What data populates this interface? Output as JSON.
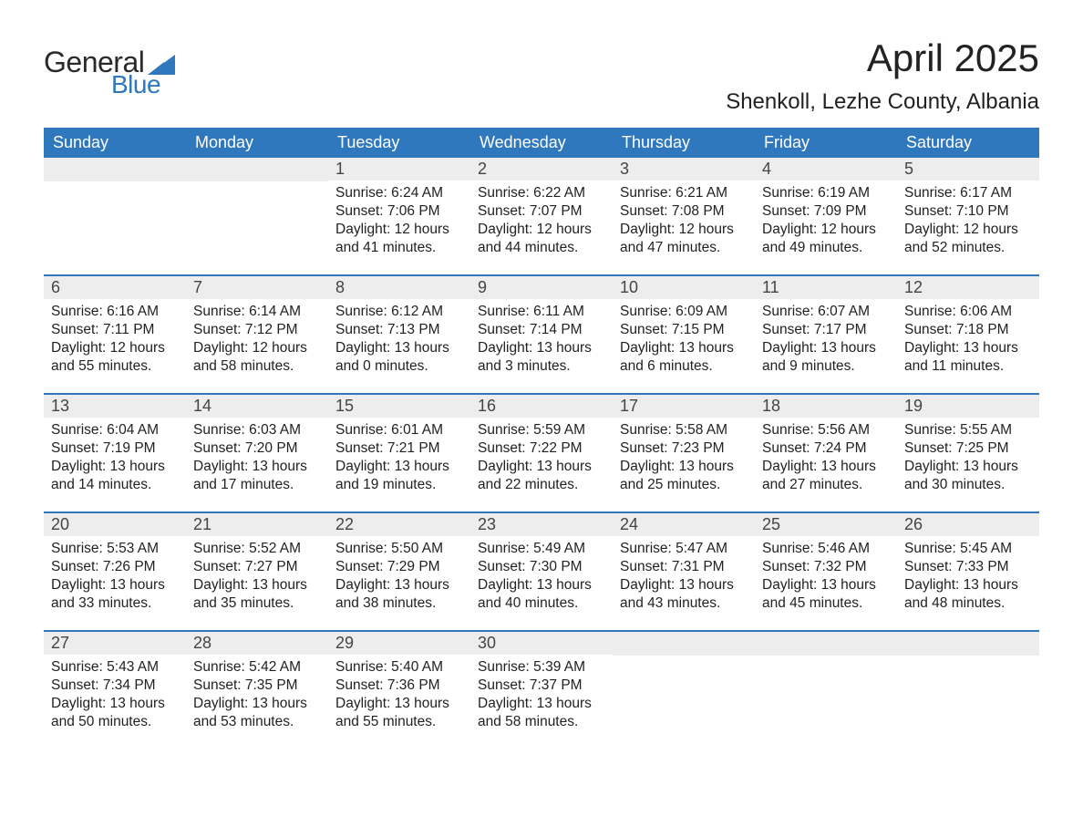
{
  "logo": {
    "general": "General",
    "blue": "Blue",
    "flag_color": "#2f78bd"
  },
  "title": "April 2025",
  "location": "Shenkoll, Lezhe County, Albania",
  "header_bg": "#2f78bd",
  "header_fg": "#ffffff",
  "daynum_bg": "#ededed",
  "border_color": "#2f78bd",
  "weekdays": [
    "Sunday",
    "Monday",
    "Tuesday",
    "Wednesday",
    "Thursday",
    "Friday",
    "Saturday"
  ],
  "weeks": [
    [
      null,
      null,
      {
        "n": "1",
        "sr": "Sunrise: 6:24 AM",
        "ss": "Sunset: 7:06 PM",
        "d1": "Daylight: 12 hours",
        "d2": "and 41 minutes."
      },
      {
        "n": "2",
        "sr": "Sunrise: 6:22 AM",
        "ss": "Sunset: 7:07 PM",
        "d1": "Daylight: 12 hours",
        "d2": "and 44 minutes."
      },
      {
        "n": "3",
        "sr": "Sunrise: 6:21 AM",
        "ss": "Sunset: 7:08 PM",
        "d1": "Daylight: 12 hours",
        "d2": "and 47 minutes."
      },
      {
        "n": "4",
        "sr": "Sunrise: 6:19 AM",
        "ss": "Sunset: 7:09 PM",
        "d1": "Daylight: 12 hours",
        "d2": "and 49 minutes."
      },
      {
        "n": "5",
        "sr": "Sunrise: 6:17 AM",
        "ss": "Sunset: 7:10 PM",
        "d1": "Daylight: 12 hours",
        "d2": "and 52 minutes."
      }
    ],
    [
      {
        "n": "6",
        "sr": "Sunrise: 6:16 AM",
        "ss": "Sunset: 7:11 PM",
        "d1": "Daylight: 12 hours",
        "d2": "and 55 minutes."
      },
      {
        "n": "7",
        "sr": "Sunrise: 6:14 AM",
        "ss": "Sunset: 7:12 PM",
        "d1": "Daylight: 12 hours",
        "d2": "and 58 minutes."
      },
      {
        "n": "8",
        "sr": "Sunrise: 6:12 AM",
        "ss": "Sunset: 7:13 PM",
        "d1": "Daylight: 13 hours",
        "d2": "and 0 minutes."
      },
      {
        "n": "9",
        "sr": "Sunrise: 6:11 AM",
        "ss": "Sunset: 7:14 PM",
        "d1": "Daylight: 13 hours",
        "d2": "and 3 minutes."
      },
      {
        "n": "10",
        "sr": "Sunrise: 6:09 AM",
        "ss": "Sunset: 7:15 PM",
        "d1": "Daylight: 13 hours",
        "d2": "and 6 minutes."
      },
      {
        "n": "11",
        "sr": "Sunrise: 6:07 AM",
        "ss": "Sunset: 7:17 PM",
        "d1": "Daylight: 13 hours",
        "d2": "and 9 minutes."
      },
      {
        "n": "12",
        "sr": "Sunrise: 6:06 AM",
        "ss": "Sunset: 7:18 PM",
        "d1": "Daylight: 13 hours",
        "d2": "and 11 minutes."
      }
    ],
    [
      {
        "n": "13",
        "sr": "Sunrise: 6:04 AM",
        "ss": "Sunset: 7:19 PM",
        "d1": "Daylight: 13 hours",
        "d2": "and 14 minutes."
      },
      {
        "n": "14",
        "sr": "Sunrise: 6:03 AM",
        "ss": "Sunset: 7:20 PM",
        "d1": "Daylight: 13 hours",
        "d2": "and 17 minutes."
      },
      {
        "n": "15",
        "sr": "Sunrise: 6:01 AM",
        "ss": "Sunset: 7:21 PM",
        "d1": "Daylight: 13 hours",
        "d2": "and 19 minutes."
      },
      {
        "n": "16",
        "sr": "Sunrise: 5:59 AM",
        "ss": "Sunset: 7:22 PM",
        "d1": "Daylight: 13 hours",
        "d2": "and 22 minutes."
      },
      {
        "n": "17",
        "sr": "Sunrise: 5:58 AM",
        "ss": "Sunset: 7:23 PM",
        "d1": "Daylight: 13 hours",
        "d2": "and 25 minutes."
      },
      {
        "n": "18",
        "sr": "Sunrise: 5:56 AM",
        "ss": "Sunset: 7:24 PM",
        "d1": "Daylight: 13 hours",
        "d2": "and 27 minutes."
      },
      {
        "n": "19",
        "sr": "Sunrise: 5:55 AM",
        "ss": "Sunset: 7:25 PM",
        "d1": "Daylight: 13 hours",
        "d2": "and 30 minutes."
      }
    ],
    [
      {
        "n": "20",
        "sr": "Sunrise: 5:53 AM",
        "ss": "Sunset: 7:26 PM",
        "d1": "Daylight: 13 hours",
        "d2": "and 33 minutes."
      },
      {
        "n": "21",
        "sr": "Sunrise: 5:52 AM",
        "ss": "Sunset: 7:27 PM",
        "d1": "Daylight: 13 hours",
        "d2": "and 35 minutes."
      },
      {
        "n": "22",
        "sr": "Sunrise: 5:50 AM",
        "ss": "Sunset: 7:29 PM",
        "d1": "Daylight: 13 hours",
        "d2": "and 38 minutes."
      },
      {
        "n": "23",
        "sr": "Sunrise: 5:49 AM",
        "ss": "Sunset: 7:30 PM",
        "d1": "Daylight: 13 hours",
        "d2": "and 40 minutes."
      },
      {
        "n": "24",
        "sr": "Sunrise: 5:47 AM",
        "ss": "Sunset: 7:31 PM",
        "d1": "Daylight: 13 hours",
        "d2": "and 43 minutes."
      },
      {
        "n": "25",
        "sr": "Sunrise: 5:46 AM",
        "ss": "Sunset: 7:32 PM",
        "d1": "Daylight: 13 hours",
        "d2": "and 45 minutes."
      },
      {
        "n": "26",
        "sr": "Sunrise: 5:45 AM",
        "ss": "Sunset: 7:33 PM",
        "d1": "Daylight: 13 hours",
        "d2": "and 48 minutes."
      }
    ],
    [
      {
        "n": "27",
        "sr": "Sunrise: 5:43 AM",
        "ss": "Sunset: 7:34 PM",
        "d1": "Daylight: 13 hours",
        "d2": "and 50 minutes."
      },
      {
        "n": "28",
        "sr": "Sunrise: 5:42 AM",
        "ss": "Sunset: 7:35 PM",
        "d1": "Daylight: 13 hours",
        "d2": "and 53 minutes."
      },
      {
        "n": "29",
        "sr": "Sunrise: 5:40 AM",
        "ss": "Sunset: 7:36 PM",
        "d1": "Daylight: 13 hours",
        "d2": "and 55 minutes."
      },
      {
        "n": "30",
        "sr": "Sunrise: 5:39 AM",
        "ss": "Sunset: 7:37 PM",
        "d1": "Daylight: 13 hours",
        "d2": "and 58 minutes."
      },
      null,
      null,
      null
    ]
  ]
}
